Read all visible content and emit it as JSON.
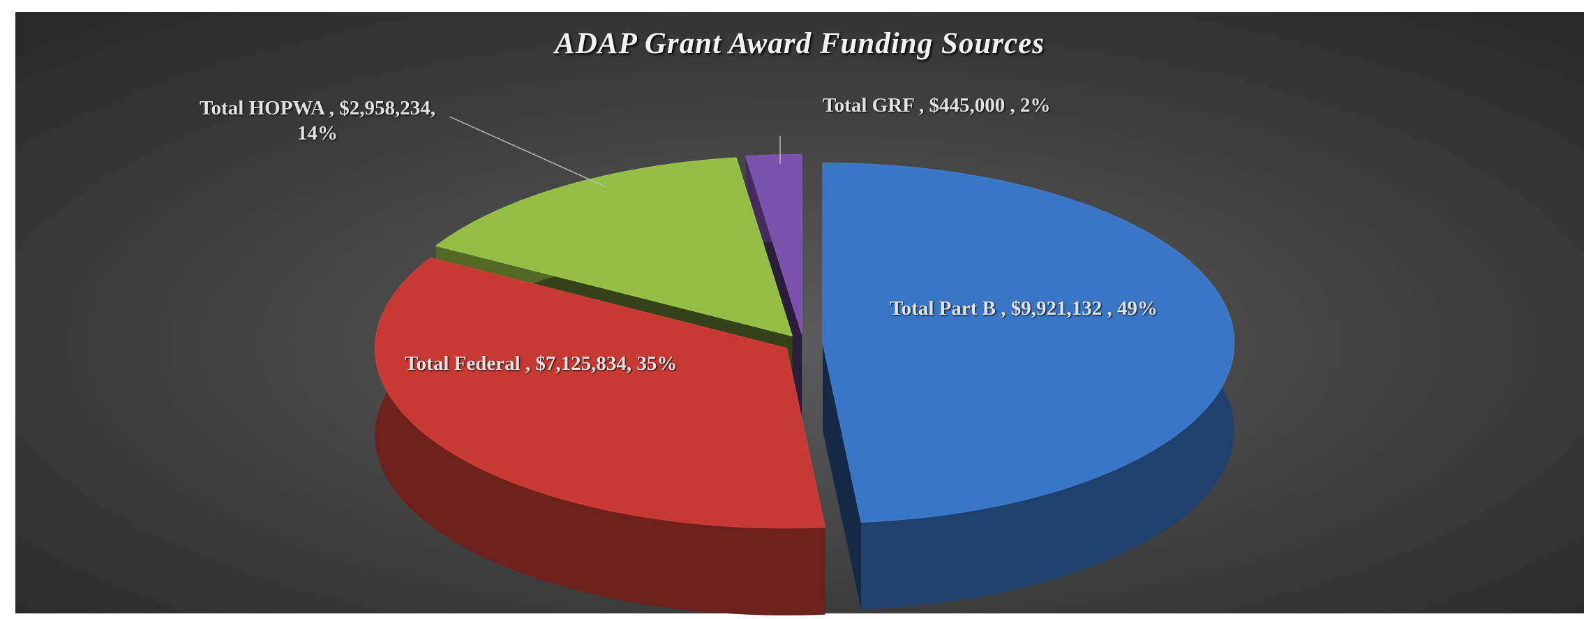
{
  "chart_data": {
    "type": "pie",
    "title": "ADAP Grant Award Funding Sources",
    "categories": [
      "Total Part B",
      "Total Federal",
      "Total HOPWA",
      "Total GRF"
    ],
    "values": [
      9921132,
      7125834,
      2958234,
      445000
    ],
    "value_labels": [
      "Total Part B , $9,921,132 , 49%",
      "Total Federal , $7,125,834, 35%",
      "Total HOPWA , $2,958,234, 14%",
      "Total GRF , $445,000 , 2%"
    ],
    "colors": [
      "#3a76c6",
      "#c73a33",
      "#93bd45",
      "#7b52ab"
    ]
  }
}
